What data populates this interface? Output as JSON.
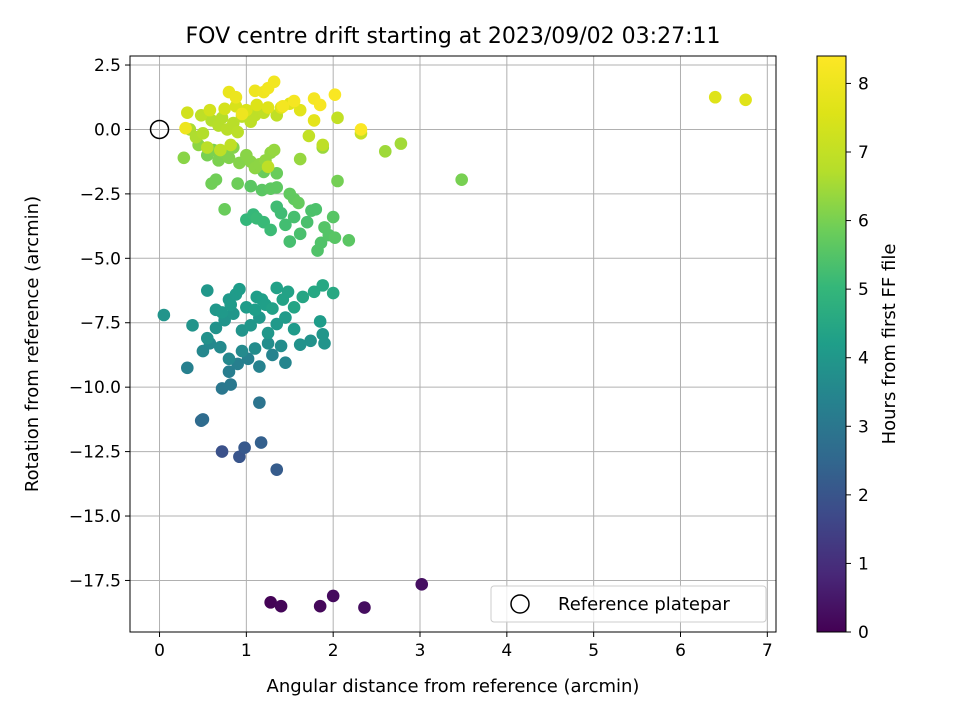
{
  "chart_data": {
    "type": "scatter",
    "title": "FOV centre drift starting at 2023/09/02 03:27:11",
    "xlabel": "Angular distance from reference (arcmin)",
    "ylabel": "Rotation from reference (arcmin)",
    "xlim": [
      -0.34,
      7.1
    ],
    "ylim": [
      -19.5,
      2.85
    ],
    "xticks": [
      0,
      1,
      2,
      3,
      4,
      5,
      6,
      7
    ],
    "yticks": [
      2.5,
      0.0,
      -2.5,
      -5.0,
      -7.5,
      -10.0,
      -12.5,
      -15.0,
      -17.5
    ],
    "xtick_labels": [
      "0",
      "1",
      "2",
      "3",
      "4",
      "5",
      "6",
      "7"
    ],
    "ytick_labels": [
      "2.5",
      "0.0",
      "−2.5",
      "−5.0",
      "−7.5",
      "−10.0",
      "−12.5",
      "−15.0",
      "−17.5"
    ],
    "grid": true,
    "colormap": "viridis",
    "colorbar": {
      "label": "Hours from first FF file",
      "range": [
        0,
        8.4
      ],
      "ticks": [
        0,
        1,
        2,
        3,
        4,
        5,
        6,
        7,
        8
      ],
      "tick_labels": [
        "0",
        "1",
        "2",
        "3",
        "4",
        "5",
        "6",
        "7",
        "8"
      ]
    },
    "legend": {
      "placement": "lower-right",
      "label": "Reference platepar"
    },
    "reference_point": {
      "x": 0,
      "y": 0
    },
    "points": [
      [
        1.28,
        -18.35,
        0.05
      ],
      [
        1.4,
        -18.5,
        0.1
      ],
      [
        1.85,
        -18.5,
        0.15
      ],
      [
        2.0,
        -18.1,
        0.2
      ],
      [
        2.36,
        -18.55,
        0.25
      ],
      [
        3.02,
        -17.65,
        0.3
      ],
      [
        0.72,
        -12.5,
        1.9
      ],
      [
        0.92,
        -12.7,
        2.0
      ],
      [
        0.98,
        -12.35,
        2.1
      ],
      [
        1.17,
        -12.15,
        2.3
      ],
      [
        1.35,
        -13.2,
        2.2
      ],
      [
        0.48,
        -11.3,
        2.6
      ],
      [
        0.5,
        -11.25,
        2.65
      ],
      [
        1.15,
        -10.6,
        2.9
      ],
      [
        0.72,
        -10.05,
        3.0
      ],
      [
        0.82,
        -9.9,
        3.05
      ],
      [
        0.32,
        -9.25,
        3.3
      ],
      [
        0.8,
        -9.4,
        3.2
      ],
      [
        0.9,
        -9.1,
        3.25
      ],
      [
        1.02,
        -8.9,
        3.3
      ],
      [
        1.15,
        -9.2,
        3.35
      ],
      [
        1.3,
        -8.75,
        3.4
      ],
      [
        1.45,
        -9.05,
        3.45
      ],
      [
        0.5,
        -8.6,
        3.5
      ],
      [
        0.58,
        -8.3,
        3.55
      ],
      [
        0.7,
        -8.45,
        3.6
      ],
      [
        0.8,
        -8.9,
        3.55
      ],
      [
        0.95,
        -8.6,
        3.6
      ],
      [
        1.1,
        -8.5,
        3.65
      ],
      [
        1.25,
        -8.3,
        3.7
      ],
      [
        1.4,
        -8.4,
        3.7
      ],
      [
        1.62,
        -8.35,
        3.85
      ],
      [
        1.74,
        -8.2,
        3.85
      ],
      [
        1.9,
        -8.3,
        3.9
      ],
      [
        1.88,
        -7.95,
        3.95
      ],
      [
        0.05,
        -7.2,
        3.9
      ],
      [
        0.38,
        -7.6,
        3.9
      ],
      [
        0.55,
        -8.1,
        3.8
      ],
      [
        0.65,
        -7.7,
        3.85
      ],
      [
        0.75,
        -7.4,
        3.9
      ],
      [
        0.85,
        -7.15,
        3.95
      ],
      [
        0.95,
        -7.8,
        3.9
      ],
      [
        1.05,
        -7.6,
        3.95
      ],
      [
        1.15,
        -7.3,
        4.0
      ],
      [
        1.25,
        -7.9,
        4.0
      ],
      [
        1.35,
        -7.55,
        4.05
      ],
      [
        1.45,
        -7.3,
        4.1
      ],
      [
        1.55,
        -7.75,
        4.1
      ],
      [
        1.85,
        -7.45,
        4.15
      ],
      [
        0.65,
        -7.0,
        4.0
      ],
      [
        0.72,
        -7.1,
        4.05
      ],
      [
        0.82,
        -6.8,
        4.1
      ],
      [
        0.88,
        -6.4,
        4.1
      ],
      [
        0.92,
        -6.2,
        4.15
      ],
      [
        1.0,
        -6.9,
        4.15
      ],
      [
        1.1,
        -7.0,
        4.2
      ],
      [
        1.12,
        -6.5,
        4.2
      ],
      [
        1.18,
        -6.6,
        4.25
      ],
      [
        1.22,
        -6.8,
        4.25
      ],
      [
        1.3,
        -6.95,
        4.3
      ],
      [
        1.35,
        -6.15,
        4.3
      ],
      [
        1.42,
        -6.6,
        4.35
      ],
      [
        1.48,
        -6.3,
        4.35
      ],
      [
        1.55,
        -6.9,
        4.4
      ],
      [
        1.65,
        -6.5,
        4.45
      ],
      [
        1.78,
        -6.3,
        4.5
      ],
      [
        1.88,
        -6.05,
        4.5
      ],
      [
        2.0,
        -6.35,
        4.55
      ],
      [
        0.55,
        -6.25,
        4.0
      ],
      [
        0.8,
        -6.6,
        4.05
      ],
      [
        1.0,
        -3.5,
        5.0
      ],
      [
        1.08,
        -3.3,
        5.05
      ],
      [
        1.12,
        -3.45,
        5.1
      ],
      [
        1.2,
        -3.6,
        5.1
      ],
      [
        1.28,
        -3.9,
        5.15
      ],
      [
        1.35,
        -3.0,
        5.2
      ],
      [
        1.4,
        -3.25,
        5.2
      ],
      [
        1.45,
        -3.7,
        5.25
      ],
      [
        1.5,
        -4.35,
        5.3
      ],
      [
        1.55,
        -3.4,
        5.3
      ],
      [
        1.62,
        -4.05,
        5.35
      ],
      [
        1.7,
        -3.6,
        5.35
      ],
      [
        1.75,
        -3.15,
        5.4
      ],
      [
        1.8,
        -3.1,
        5.4
      ],
      [
        1.82,
        -4.7,
        5.45
      ],
      [
        1.86,
        -4.4,
        5.45
      ],
      [
        1.9,
        -3.8,
        5.5
      ],
      [
        1.95,
        -4.1,
        5.5
      ],
      [
        2.0,
        -3.4,
        5.55
      ],
      [
        2.02,
        -4.2,
        5.55
      ],
      [
        2.18,
        -4.3,
        5.6
      ],
      [
        1.05,
        -2.2,
        5.6
      ],
      [
        1.18,
        -2.35,
        5.6
      ],
      [
        1.28,
        -2.3,
        5.65
      ],
      [
        1.35,
        -2.25,
        5.65
      ],
      [
        1.5,
        -2.5,
        5.7
      ],
      [
        1.55,
        -2.7,
        5.7
      ],
      [
        1.6,
        -2.85,
        5.75
      ],
      [
        1.2,
        -1.65,
        5.8
      ],
      [
        1.35,
        -1.7,
        5.8
      ],
      [
        0.75,
        -3.1,
        5.8
      ],
      [
        0.9,
        -2.1,
        5.85
      ],
      [
        0.6,
        -2.1,
        5.9
      ],
      [
        0.65,
        -1.95,
        5.9
      ],
      [
        2.05,
        -2.0,
        5.95
      ],
      [
        3.48,
        -1.95,
        6.0
      ],
      [
        0.55,
        -1.0,
        6.0
      ],
      [
        0.62,
        -0.8,
        6.05
      ],
      [
        0.68,
        -1.2,
        6.05
      ],
      [
        0.75,
        -0.9,
        6.1
      ],
      [
        0.8,
        -1.1,
        6.1
      ],
      [
        0.85,
        -0.7,
        6.15
      ],
      [
        0.92,
        -1.3,
        6.15
      ],
      [
        1.0,
        -1.0,
        6.2
      ],
      [
        1.05,
        -1.25,
        6.2
      ],
      [
        1.1,
        -1.5,
        6.25
      ],
      [
        1.15,
        -1.35,
        6.25
      ],
      [
        1.22,
        -1.2,
        6.3
      ],
      [
        1.28,
        -0.9,
        6.3
      ],
      [
        1.32,
        -0.8,
        6.35
      ],
      [
        0.28,
        -1.1,
        6.2
      ],
      [
        0.45,
        -0.6,
        6.25
      ],
      [
        1.62,
        -1.15,
        6.35
      ],
      [
        1.88,
        -0.7,
        6.4
      ],
      [
        2.6,
        -0.85,
        6.45
      ],
      [
        2.78,
        -0.55,
        6.5
      ],
      [
        0.35,
        0.0,
        6.6
      ],
      [
        0.42,
        -0.3,
        6.65
      ],
      [
        0.5,
        -0.15,
        6.7
      ],
      [
        0.6,
        0.35,
        6.7
      ],
      [
        0.68,
        0.15,
        6.75
      ],
      [
        0.72,
        0.45,
        6.75
      ],
      [
        0.78,
        0.0,
        6.8
      ],
      [
        0.85,
        0.25,
        6.8
      ],
      [
        0.9,
        -0.1,
        6.85
      ],
      [
        0.95,
        0.5,
        6.85
      ],
      [
        1.05,
        0.3,
        6.9
      ],
      [
        1.1,
        0.55,
        6.9
      ],
      [
        1.2,
        0.65,
        6.95
      ],
      [
        1.35,
        0.55,
        6.95
      ],
      [
        0.48,
        0.55,
        6.9
      ],
      [
        0.55,
        -0.7,
        6.85
      ],
      [
        0.7,
        -0.8,
        6.9
      ],
      [
        0.82,
        -0.6,
        6.95
      ],
      [
        1.25,
        -1.45,
        6.9
      ],
      [
        1.72,
        -0.25,
        7.0
      ],
      [
        2.05,
        0.45,
        7.0
      ],
      [
        2.32,
        -0.15,
        7.05
      ],
      [
        0.32,
        0.65,
        7.3
      ],
      [
        0.58,
        0.75,
        7.35
      ],
      [
        0.75,
        0.8,
        7.4
      ],
      [
        0.88,
        0.9,
        7.45
      ],
      [
        1.0,
        0.75,
        7.5
      ],
      [
        1.12,
        0.95,
        7.55
      ],
      [
        1.25,
        0.85,
        7.6
      ],
      [
        1.4,
        0.85,
        7.65
      ],
      [
        1.5,
        1.0,
        7.7
      ],
      [
        1.62,
        0.75,
        7.7
      ],
      [
        1.78,
        0.35,
        7.75
      ],
      [
        6.4,
        1.25,
        7.6
      ],
      [
        6.75,
        1.15,
        7.65
      ],
      [
        0.8,
        1.45,
        7.9
      ],
      [
        0.88,
        1.25,
        7.95
      ],
      [
        0.95,
        0.6,
        8.0
      ],
      [
        1.1,
        1.5,
        8.0
      ],
      [
        1.2,
        1.45,
        8.05
      ],
      [
        1.25,
        1.6,
        8.1
      ],
      [
        1.32,
        1.85,
        8.1
      ],
      [
        1.42,
        0.9,
        8.15
      ],
      [
        1.55,
        1.1,
        8.2
      ],
      [
        1.78,
        1.2,
        8.2
      ],
      [
        1.85,
        0.95,
        8.25
      ],
      [
        2.02,
        1.35,
        8.3
      ],
      [
        2.32,
        0.0,
        8.35
      ],
      [
        1.88,
        -0.6,
        6.9
      ],
      [
        0.3,
        0.05,
        8.0
      ]
    ]
  }
}
